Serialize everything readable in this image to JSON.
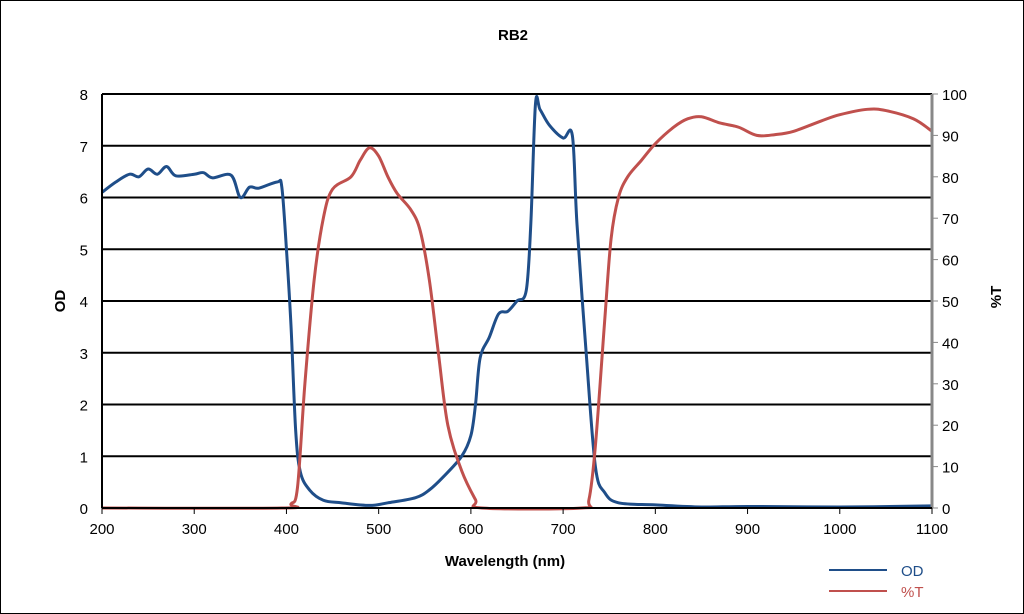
{
  "chart_data": {
    "type": "line",
    "title": "RB2",
    "xlabel": "Wavelength (nm)",
    "ylabel": "OD",
    "y2label": "%T",
    "xlim": [
      200,
      1100
    ],
    "ylim": [
      0,
      8
    ],
    "y2lim": [
      0,
      100
    ],
    "xticks": [
      200,
      300,
      400,
      500,
      600,
      700,
      800,
      900,
      1000,
      1100
    ],
    "yticks": [
      0,
      1,
      2,
      3,
      4,
      5,
      6,
      7,
      8
    ],
    "y2ticks": [
      0,
      10,
      20,
      30,
      40,
      50,
      60,
      70,
      80,
      90,
      100
    ],
    "grid": true,
    "legend_placement": "bottom-right",
    "series": [
      {
        "name": "OD",
        "axis": "left",
        "color": "#1f4e89",
        "x": [
          200,
          215,
          230,
          240,
          250,
          260,
          270,
          280,
          300,
          310,
          320,
          340,
          350,
          360,
          370,
          390,
          395,
          400,
          405,
          410,
          415,
          425,
          440,
          460,
          490,
          510,
          540,
          555,
          570,
          590,
          600,
          605,
          610,
          620,
          630,
          640,
          650,
          660,
          665,
          670,
          675,
          685,
          700,
          710,
          715,
          725,
          735,
          745,
          760,
          800,
          850,
          900,
          1000,
          1100
        ],
        "y": [
          6.1,
          6.3,
          6.45,
          6.4,
          6.55,
          6.45,
          6.6,
          6.42,
          6.45,
          6.48,
          6.38,
          6.43,
          6.0,
          6.2,
          6.18,
          6.3,
          6.2,
          5.0,
          3.5,
          1.5,
          0.7,
          0.35,
          0.15,
          0.1,
          0.05,
          0.1,
          0.2,
          0.35,
          0.6,
          1.0,
          1.4,
          2.0,
          2.9,
          3.3,
          3.75,
          3.8,
          4.0,
          4.2,
          5.5,
          7.8,
          7.7,
          7.4,
          7.15,
          7.2,
          5.5,
          3.0,
          0.8,
          0.3,
          0.1,
          0.06,
          0.02,
          0.03,
          0.02,
          0.04
        ]
      },
      {
        "name": "%T",
        "axis": "right",
        "color": "#c0504d",
        "x": [
          200,
          395,
          405,
          412,
          420,
          430,
          440,
          450,
          470,
          480,
          490,
          500,
          510,
          520,
          535,
          545,
          555,
          565,
          575,
          590,
          605,
          612,
          720,
          728,
          735,
          745,
          752,
          760,
          770,
          785,
          800,
          820,
          835,
          850,
          870,
          890,
          910,
          930,
          950,
          980,
          1000,
          1030,
          1050,
          1080,
          1100
        ],
        "y": [
          0,
          0,
          1,
          5,
          30,
          55,
          70,
          77,
          80,
          84,
          87,
          85,
          80,
          76,
          72,
          67,
          55,
          37,
          20,
          9,
          2,
          0,
          0,
          2,
          15,
          45,
          65,
          75,
          80,
          84,
          88,
          92,
          94,
          94.5,
          93,
          92,
          90,
          90.2,
          91,
          93.5,
          95,
          96.3,
          96,
          94,
          91
        ]
      }
    ]
  }
}
